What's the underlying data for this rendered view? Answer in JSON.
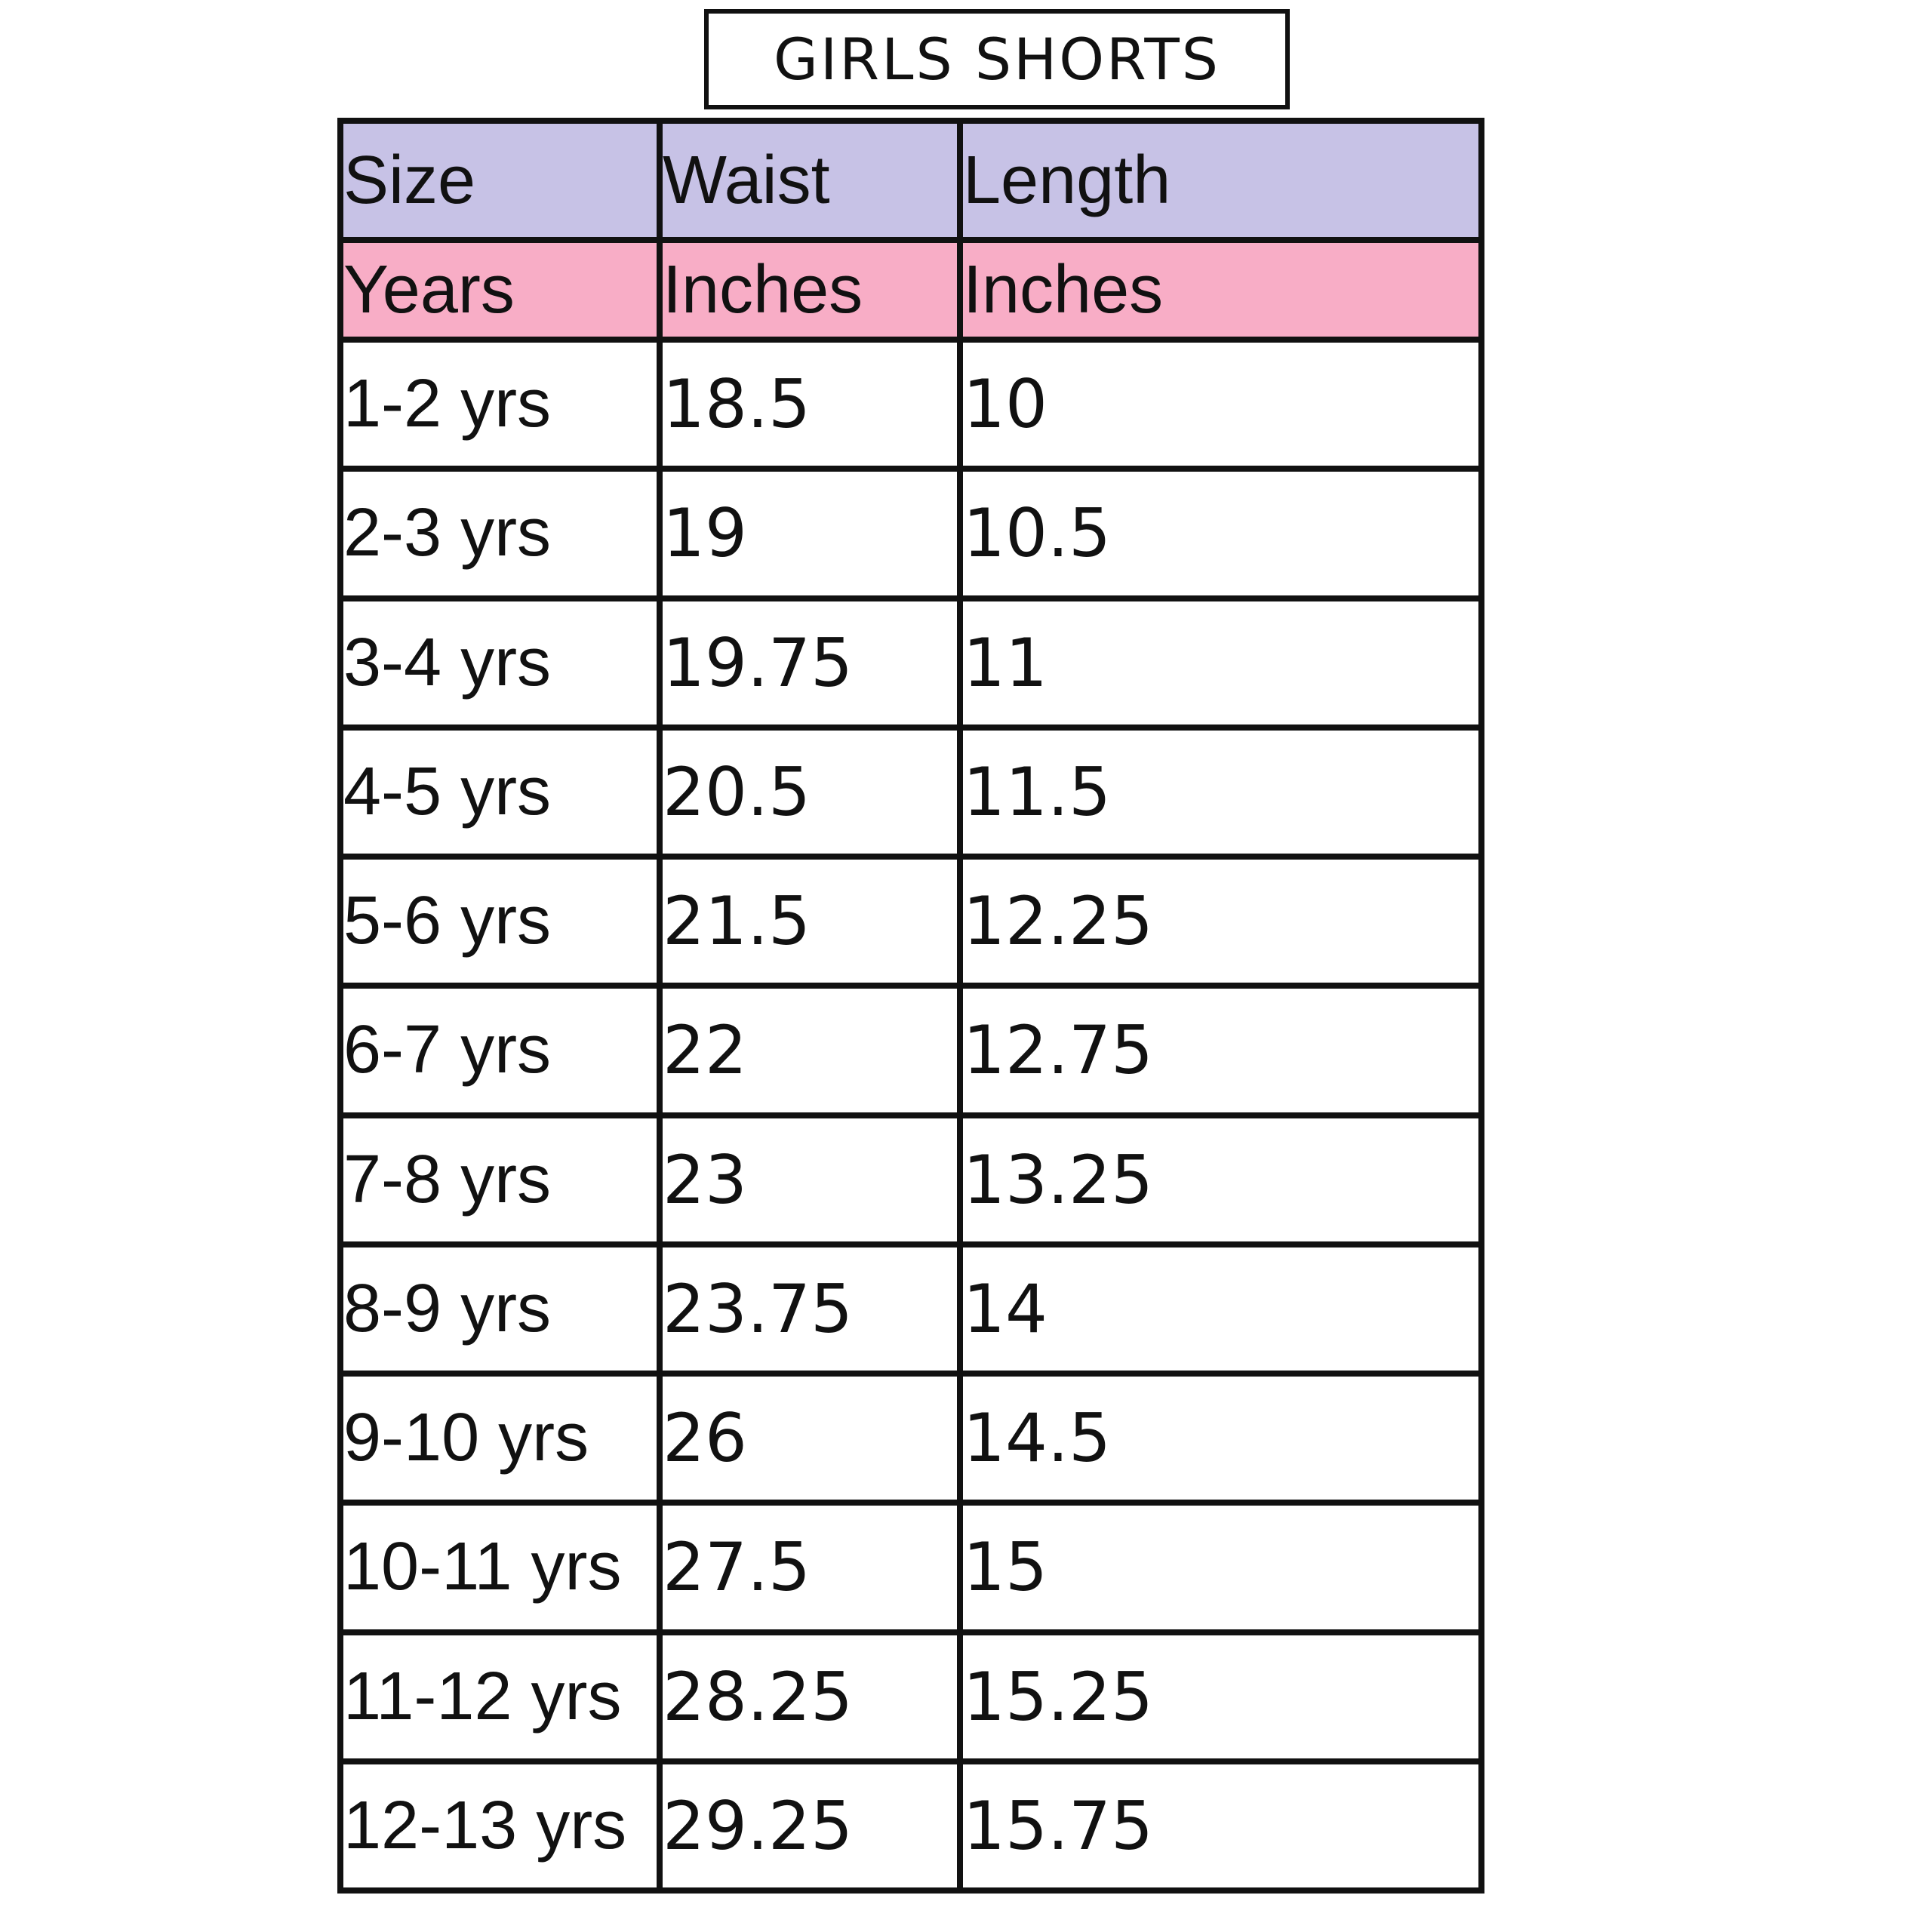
{
  "title": "GIRLS SHORTS",
  "table": {
    "headers": [
      "Size",
      "Waist",
      "Length"
    ],
    "units": [
      "Years",
      "Inches",
      "Inches"
    ],
    "rows": [
      {
        "size": "1-2 yrs",
        "waist": "18.5",
        "length": "10"
      },
      {
        "size": "2-3 yrs",
        "waist": "19",
        "length": "10.5"
      },
      {
        "size": "3-4 yrs",
        "waist": "19.75",
        "length": "11"
      },
      {
        "size": "4-5 yrs",
        "waist": "20.5",
        "length": "11.5"
      },
      {
        "size": "5-6 yrs",
        "waist": "21.5",
        "length": "12.25"
      },
      {
        "size": "6-7 yrs",
        "waist": "22",
        "length": "12.75"
      },
      {
        "size": "7-8 yrs",
        "waist": "23",
        "length": "13.25"
      },
      {
        "size": "8-9 yrs",
        "waist": "23.75",
        "length": "14"
      },
      {
        "size": "9-10 yrs",
        "waist": "26",
        "length": "14.5"
      },
      {
        "size": "10-11 yrs",
        "waist": "27.5",
        "length": "15"
      },
      {
        "size": "11-12 yrs",
        "waist": "28.25",
        "length": "15.25"
      },
      {
        "size": "12-13 yrs",
        "waist": "29.25",
        "length": "15.75"
      }
    ]
  },
  "colors": {
    "header_bg": "#c7c2e6",
    "unit_bg": "#f8adc6",
    "border": "#111111"
  }
}
